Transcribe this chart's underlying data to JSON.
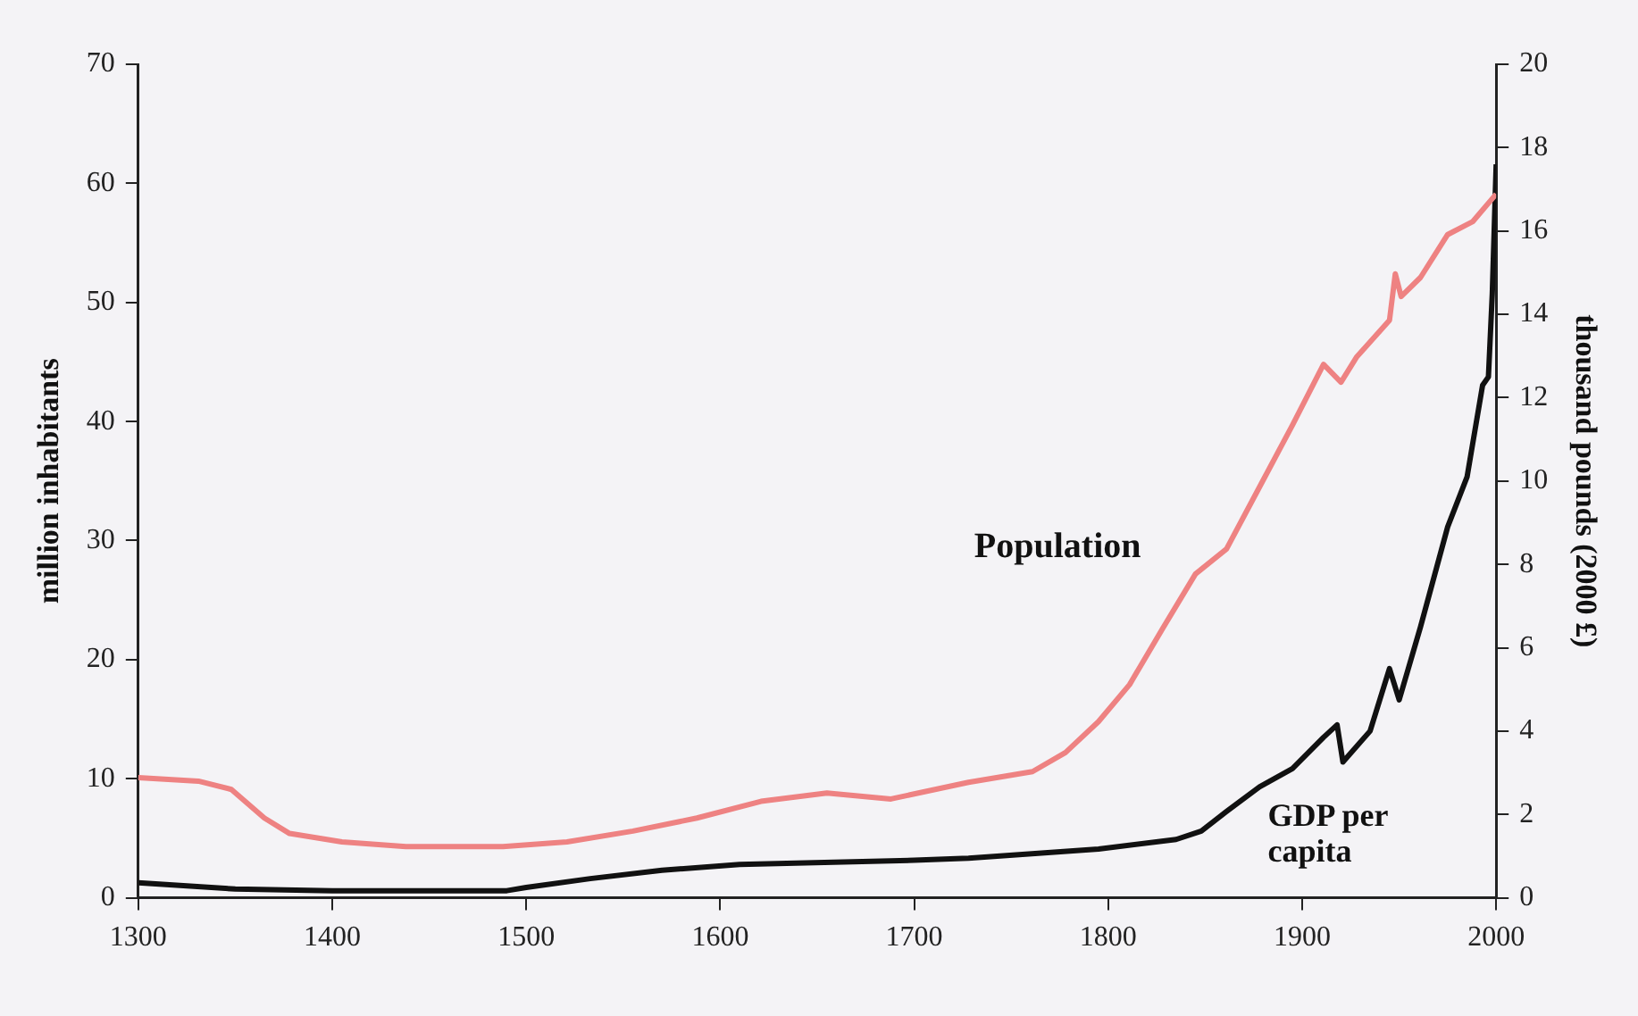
{
  "chart_data": {
    "type": "line",
    "ylabel": "million inhabitants",
    "y2label": "thousand pounds (2000 £)",
    "xlim": [
      1300,
      2000
    ],
    "xticks": [
      1300,
      1400,
      1500,
      1600,
      1700,
      1800,
      1900,
      2000
    ],
    "ylim": [
      0,
      70
    ],
    "yticks": [
      0,
      10,
      20,
      30,
      40,
      50,
      60,
      70
    ],
    "y2lim": [
      0,
      20
    ],
    "y2ticks": [
      0,
      2,
      4,
      6,
      8,
      10,
      12,
      14,
      16,
      18,
      20
    ],
    "grid": false,
    "legend": false,
    "marker": "none",
    "line_style": "solid",
    "series": [
      {
        "name": "Population",
        "color": "#ee8282",
        "x": [
          1300,
          1331,
          1348,
          1365,
          1378,
          1405,
          1438,
          1488,
          1521,
          1555,
          1588,
          1621,
          1655,
          1688,
          1728,
          1761,
          1778,
          1795,
          1811,
          1828,
          1845,
          1861,
          1878,
          1895,
          1911,
          1920,
          1928,
          1945,
          1948,
          1951,
          1961,
          1975,
          1988,
          2000
        ],
        "values": [
          10.1,
          9.8,
          9.1,
          6.7,
          5.4,
          4.7,
          4.3,
          4.3,
          4.7,
          5.6,
          6.7,
          8.1,
          8.8,
          8.3,
          9.7,
          10.6,
          12.2,
          14.8,
          17.9,
          22.6,
          27.2,
          29.3,
          34.5,
          39.7,
          44.8,
          43.3,
          45.4,
          48.5,
          52.4,
          50.5,
          52.1,
          55.7,
          56.8,
          59.1
        ]
      },
      {
        "name": "GDP per capita",
        "color": "#111111",
        "axis": "y2",
        "x": [
          1300,
          1350,
          1400,
          1490,
          1500,
          1533,
          1570,
          1610,
          1700,
          1728,
          1795,
          1835,
          1848,
          1861,
          1878,
          1895,
          1911,
          1918,
          1921,
          1935,
          1945,
          1950,
          1961,
          1975,
          1985,
          1993,
          1996,
          1998,
          2000
        ],
        "values": [
          0.36,
          0.21,
          0.17,
          0.17,
          0.25,
          0.46,
          0.66,
          0.8,
          0.9,
          0.95,
          1.17,
          1.4,
          1.6,
          2.07,
          2.66,
          3.1,
          3.85,
          4.15,
          3.26,
          4.0,
          5.5,
          4.75,
          6.5,
          8.9,
          10.1,
          12.3,
          12.5,
          14.5,
          17.6
        ]
      }
    ]
  }
}
